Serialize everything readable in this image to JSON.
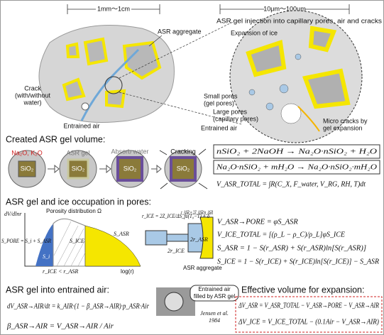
{
  "top": {
    "scale_left": "1mm～1cm",
    "scale_right": "10μm～100μm",
    "asr_aggregate": "ASR aggregate",
    "gel_injection": "ASR gel injection into capillary pores, air and cracks",
    "expansion_ice": "Expansion of ice",
    "crack": [
      "Crack",
      "(with/without",
      "water)"
    ],
    "entrained_air_left": "Entrained air",
    "small_pores": [
      "Small pores",
      "(gel pores)"
    ],
    "large_pores": [
      "Large pores",
      "(capillary pores)"
    ],
    "entrained_air_right": "Entrained air",
    "micro_cracks": [
      "Micro cracks by",
      "gel expansion"
    ]
  },
  "created": {
    "heading": "Created ASR gel volume:",
    "steps": [
      {
        "label": "Na₂O, K₂O",
        "core": "SiO₂"
      },
      {
        "label": "ASR gel",
        "core": "SiO₂"
      },
      {
        "label": "Absorb water",
        "core": "SiO₂"
      },
      {
        "label": "Cracking",
        "core": "SiO₂"
      }
    ],
    "equations": [
      "nSiO₂ + 2NaOH → Na₂O·nSiO₂ + H₂O",
      "Na₂O·nSiO₂ + mH₂O → Na₂O·nSiO₂·mH₂O",
      "V_ASR_TOTAL = ∫R(C_X, F_water, V_RG, RH, T)dt"
    ]
  },
  "pores": {
    "heading": "ASR gel and ice occupation in pores:",
    "plot": {
      "y_label": "dV/dlnr",
      "title": "Porosity distribution Ω",
      "s_pore": "S_PORE = S_i + S_ASR",
      "s_asr": "S_ASR",
      "s_ice": "S_ICE",
      "s_i": "S_i",
      "r_compare": "r_ICE < r_ASR",
      "x_label": "log(r)"
    },
    "pore": {
      "r_ice": "r_ICE = 2Z_ICE/ΔS_fu(T₀−T) + δ",
      "r_asr": "r_ASR = 2Z_ASR/p_ASR",
      "two_r_ice": "2r_ICE",
      "two_r_asr": "2r_ASR",
      "aggregate": "ASR aggregate"
    },
    "equations": [
      "V_ASR→PORE = φS_ASR",
      "V_ICE_TOTAL = [(ρ_L − ρ_C)/ρ_L]φS_ICE",
      "S_ASR = 1 − S(r_ASR) + S(r_ASR)ln[S(r_ASR)]",
      "S_ICE = 1 − S(r_ICE) + S(r_ICE)ln[S(r_ICE)] − S_ASR"
    ]
  },
  "air": {
    "heading": "ASR gel into entrained air:",
    "equations": [
      "dV_ASR→AIR/dt = k_AIR·(1 − β_ASR→AIR)·p_ASR·Air",
      "β_ASR→AIR = V_ASR→AIR / Air"
    ],
    "photo_caption": [
      "Entrained air",
      "filled by ASR gel"
    ],
    "citation": [
      "Jensen et al.",
      "1984"
    ]
  },
  "effective": {
    "heading": "Effective volume for expansion:",
    "equations": [
      "ΔV_ASR = V_ASR_TOTAL − V_ASR→PORE − V_ASR→AIR",
      "ΔV_ICE = V_ICE_TOTAL − (0.1Air − V_ASR→AIR)"
    ]
  }
}
